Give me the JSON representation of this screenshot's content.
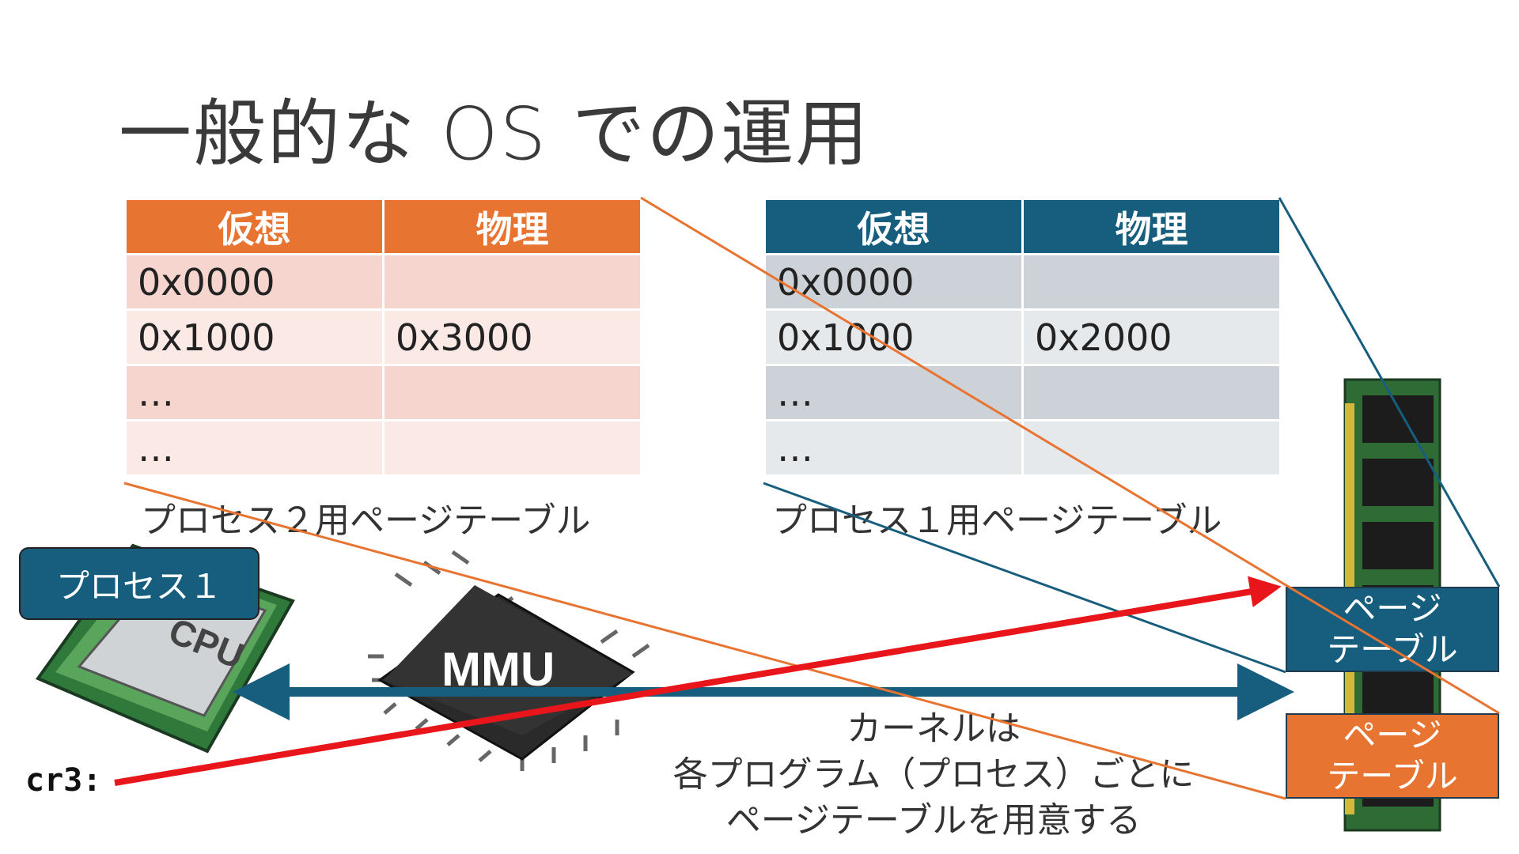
{
  "slide": {
    "title": "一般的な OS での運用"
  },
  "table_process2": {
    "header_virtual": "仮想",
    "header_physical": "物理",
    "rows": [
      {
        "virtual": "0x0000",
        "physical": ""
      },
      {
        "virtual": "0x1000",
        "physical": "0x3000"
      },
      {
        "virtual": "…",
        "physical": ""
      },
      {
        "virtual": "…",
        "physical": ""
      }
    ],
    "caption": "プロセス２用ページテーブル",
    "header_color": "#e87432",
    "row_color_a": "#f6d5cf",
    "row_color_b": "#fbe9e6"
  },
  "table_process1": {
    "header_virtual": "仮想",
    "header_physical": "物理",
    "rows": [
      {
        "virtual": "0x0000",
        "physical": ""
      },
      {
        "virtual": "0x1000",
        "physical": "0x2000"
      },
      {
        "virtual": "…",
        "physical": ""
      },
      {
        "virtual": "…",
        "physical": ""
      }
    ],
    "caption": "プロセス１用ページテーブル",
    "header_color": "#175e7e",
    "row_color_a": "#cdd2d9",
    "row_color_b": "#e6e9ec"
  },
  "cpu": {
    "chip_text": "CPU",
    "process_label": "プロセス１",
    "cr3_label": "cr3:"
  },
  "mmu": {
    "label": "MMU"
  },
  "memory": {
    "page_table_blue": {
      "line1": "ページ",
      "line2": "テーブル",
      "color": "#175e7e"
    },
    "page_table_orange": {
      "line1": "ページ",
      "line2": "テーブル",
      "color": "#e87432"
    }
  },
  "kernel_note": {
    "line1": "カーネルは",
    "line2": "各プログラム（プロセス）ごとに",
    "line3": "ページテーブルを用意する"
  },
  "colors": {
    "orange": "#e87432",
    "blue": "#175e7e",
    "red_arrow": "#e8161b",
    "bus_arrow": "#175e7e"
  }
}
